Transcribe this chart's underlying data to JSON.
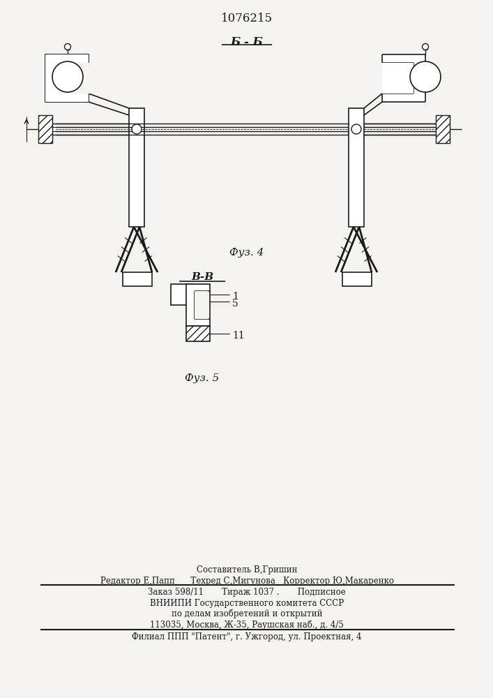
{
  "title": "1076215",
  "fig4_label": "Б - Б",
  "fig4_caption": "Фуз. 4",
  "fig5_label": "В-В",
  "fig5_caption": "Фуз. 5",
  "footer_line1": "Составитель В,Гришин",
  "footer_line2": "Редактор Е,Папп      Техред С,Мигунова   Корректор Ю,Макаренко",
  "footer_line3": "Заказ 598/11       Тираж 1037 .       Подписное",
  "footer_line4": "ВНИИПИ Государственного комитета СССР",
  "footer_line5": "по делам изобретений и открытий",
  "footer_line6": "113035, Москва, Ж-35, Раушская наб., д. 4/5",
  "footer_line7": "Филиал ППП \"Патент\", г. Ужгород, ул. Проектная, 4",
  "bg_color": "#f5f3ef",
  "line_color": "#1a1a1a"
}
